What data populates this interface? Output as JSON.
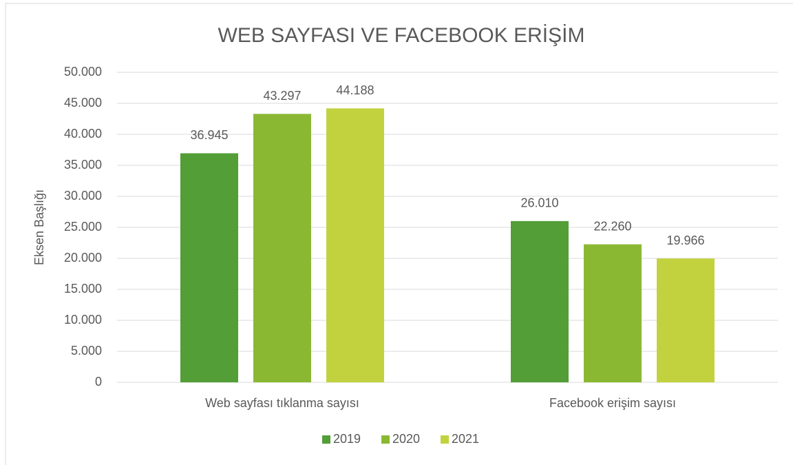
{
  "chart_data": {
    "type": "bar",
    "title": "WEB SAYFASI VE FACEBOOK ERİŞİM",
    "y_label": "Eksen Başlığı",
    "categories": [
      "Web sayfası tıklanma sayısı",
      "Facebook erişim sayısı"
    ],
    "series": [
      {
        "name": "2019",
        "color": "#539e37",
        "values": [
          36945,
          26010
        ],
        "value_labels": [
          "36.945",
          "26.010"
        ]
      },
      {
        "name": "2020",
        "color": "#8bb833",
        "values": [
          43297,
          22260
        ],
        "value_labels": [
          "43.297",
          "22.260"
        ]
      },
      {
        "name": "2021",
        "color": "#c2d23f",
        "values": [
          44188,
          19966
        ],
        "value_labels": [
          "44.188",
          "19.966"
        ]
      }
    ],
    "ylim": [
      0,
      50000
    ],
    "yticks": [
      0,
      {
        "value": 5000,
        "label": "5.000"
      },
      {
        "value": 10000,
        "label": "10.000"
      },
      {
        "value": 15000,
        "label": "15.000"
      },
      {
        "value": 20000,
        "label": "20.000"
      },
      {
        "value": 25000,
        "label": "25.000"
      },
      {
        "value": 30000,
        "label": "30.000"
      },
      {
        "value": 35000,
        "label": "35.000"
      },
      {
        "value": 40000,
        "label": "40.000"
      },
      {
        "value": 45000,
        "label": "45.000"
      },
      {
        "value": 50000,
        "label": "50.000"
      }
    ],
    "grid": true,
    "legend": "bottom"
  }
}
